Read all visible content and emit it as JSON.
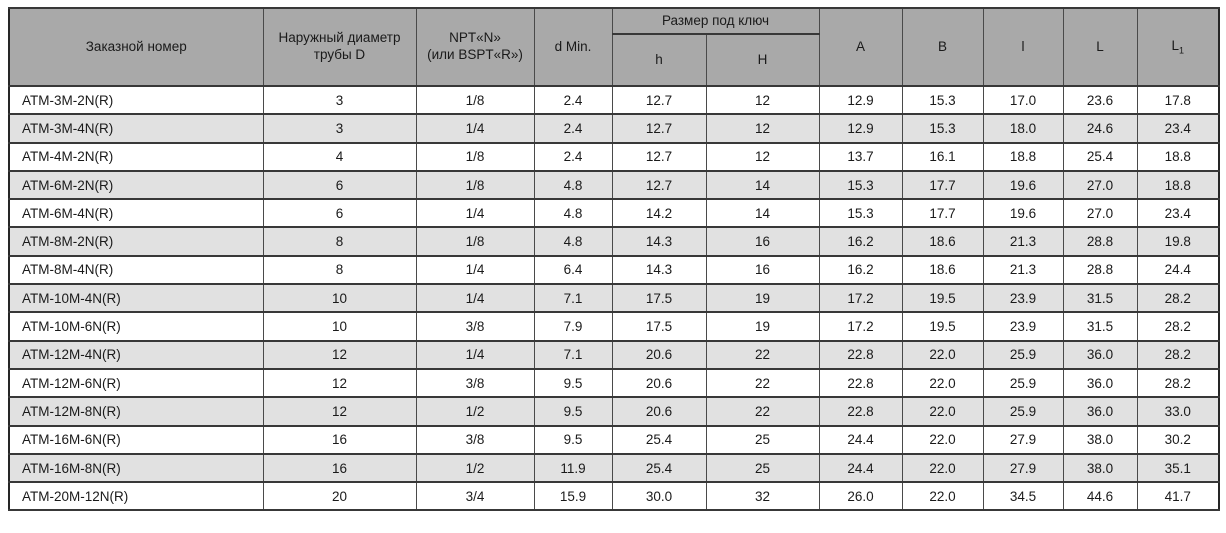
{
  "table": {
    "header": {
      "order_number": "Заказной номер",
      "outer_diameter_line1": "Наружный диаметр",
      "outer_diameter_line2": "трубы D",
      "npt_line1": "NPT«N»",
      "npt_line2": "(или BSPT«R»)",
      "d_min": "d Min.",
      "wrench_group": "Размер под ключ",
      "h_small": "h",
      "h_big": "H",
      "col_a": "A",
      "col_b": "B",
      "col_l_small": "l",
      "col_l_big": "L",
      "col_l1_base": "L",
      "col_l1_sub": "1"
    },
    "rows": [
      [
        "ATM-3M-2N(R)",
        "3",
        "1/8",
        "2.4",
        "12.7",
        "12",
        "12.9",
        "15.3",
        "17.0",
        "23.6",
        "17.8"
      ],
      [
        "ATM-3M-4N(R)",
        "3",
        "1/4",
        "2.4",
        "12.7",
        "12",
        "12.9",
        "15.3",
        "18.0",
        "24.6",
        "23.4"
      ],
      [
        "ATM-4M-2N(R)",
        "4",
        "1/8",
        "2.4",
        "12.7",
        "12",
        "13.7",
        "16.1",
        "18.8",
        "25.4",
        "18.8"
      ],
      [
        "ATM-6M-2N(R)",
        "6",
        "1/8",
        "4.8",
        "12.7",
        "14",
        "15.3",
        "17.7",
        "19.6",
        "27.0",
        "18.8"
      ],
      [
        "ATM-6M-4N(R)",
        "6",
        "1/4",
        "4.8",
        "14.2",
        "14",
        "15.3",
        "17.7",
        "19.6",
        "27.0",
        "23.4"
      ],
      [
        "ATM-8M-2N(R)",
        "8",
        "1/8",
        "4.8",
        "14.3",
        "16",
        "16.2",
        "18.6",
        "21.3",
        "28.8",
        "19.8"
      ],
      [
        "ATM-8M-4N(R)",
        "8",
        "1/4",
        "6.4",
        "14.3",
        "16",
        "16.2",
        "18.6",
        "21.3",
        "28.8",
        "24.4"
      ],
      [
        "ATM-10M-4N(R)",
        "10",
        "1/4",
        "7.1",
        "17.5",
        "19",
        "17.2",
        "19.5",
        "23.9",
        "31.5",
        "28.2"
      ],
      [
        "ATM-10M-6N(R)",
        "10",
        "3/8",
        "7.9",
        "17.5",
        "19",
        "17.2",
        "19.5",
        "23.9",
        "31.5",
        "28.2"
      ],
      [
        "ATM-12M-4N(R)",
        "12",
        "1/4",
        "7.1",
        "20.6",
        "22",
        "22.8",
        "22.0",
        "25.9",
        "36.0",
        "28.2"
      ],
      [
        "ATM-12M-6N(R)",
        "12",
        "3/8",
        "9.5",
        "20.6",
        "22",
        "22.8",
        "22.0",
        "25.9",
        "36.0",
        "28.2"
      ],
      [
        "ATM-12M-8N(R)",
        "12",
        "1/2",
        "9.5",
        "20.6",
        "22",
        "22.8",
        "22.0",
        "25.9",
        "36.0",
        "33.0"
      ],
      [
        "ATM-16M-6N(R)",
        "16",
        "3/8",
        "9.5",
        "25.4",
        "25",
        "24.4",
        "22.0",
        "27.9",
        "38.0",
        "30.2"
      ],
      [
        "ATM-16M-8N(R)",
        "16",
        "1/2",
        "11.9",
        "25.4",
        "25",
        "24.4",
        "22.0",
        "27.9",
        "38.0",
        "35.1"
      ],
      [
        "ATM-20M-12N(R)",
        "20",
        "3/4",
        "15.9",
        "30.0",
        "32",
        "26.0",
        "22.0",
        "34.5",
        "44.6",
        "41.7"
      ]
    ]
  },
  "colors": {
    "header_bg": "#a9a9a9",
    "row_alt_bg": "#e1e1e1",
    "border": "#383838",
    "text": "#1a1a1a"
  }
}
